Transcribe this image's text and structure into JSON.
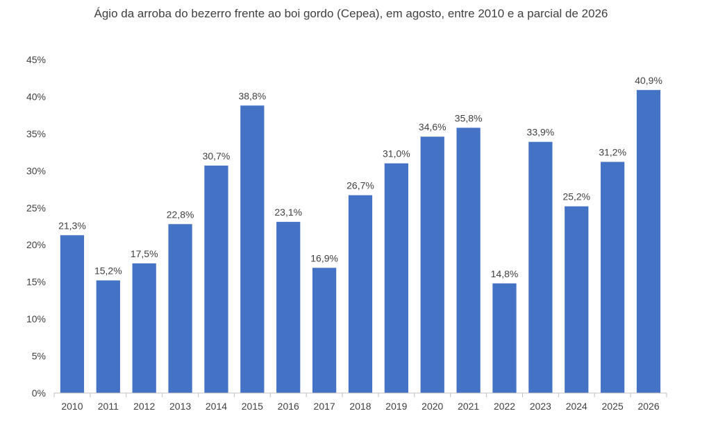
{
  "chart_data": {
    "type": "bar",
    "title": "Ágio da arroba do bezerro frente ao boi gordo (Cepea), em agosto, entre 2010 e a parcial de 2026",
    "xlabel": "",
    "ylabel": "",
    "categories": [
      "2010",
      "2011",
      "2012",
      "2013",
      "2014",
      "2015",
      "2016",
      "2017",
      "2018",
      "2019",
      "2020",
      "2021",
      "2022",
      "2023",
      "2024",
      "2025",
      "2026"
    ],
    "values": [
      21.3,
      15.2,
      17.5,
      22.8,
      30.7,
      38.8,
      23.1,
      16.9,
      26.7,
      31.0,
      34.6,
      35.8,
      14.8,
      33.9,
      25.2,
      31.2,
      40.9
    ],
    "data_labels": [
      "21,3%",
      "15,2%",
      "17,5%",
      "22,8%",
      "30,7%",
      "38,8%",
      "23,1%",
      "16,9%",
      "26,7%",
      "31,0%",
      "34,6%",
      "35,8%",
      "14,8%",
      "33,9%",
      "25,2%",
      "31,2%",
      "40,9%"
    ],
    "ylim": [
      0,
      45
    ],
    "yticks": [
      0,
      5,
      10,
      15,
      20,
      25,
      30,
      35,
      40,
      45
    ],
    "ytick_labels": [
      "0%",
      "5%",
      "10%",
      "15%",
      "20%",
      "25%",
      "30%",
      "35%",
      "40%",
      "45%"
    ],
    "grid": false,
    "legend": "none",
    "bar_color": "#4472C4",
    "text_color": "#404040",
    "axis_color": "#BFBFBF"
  }
}
